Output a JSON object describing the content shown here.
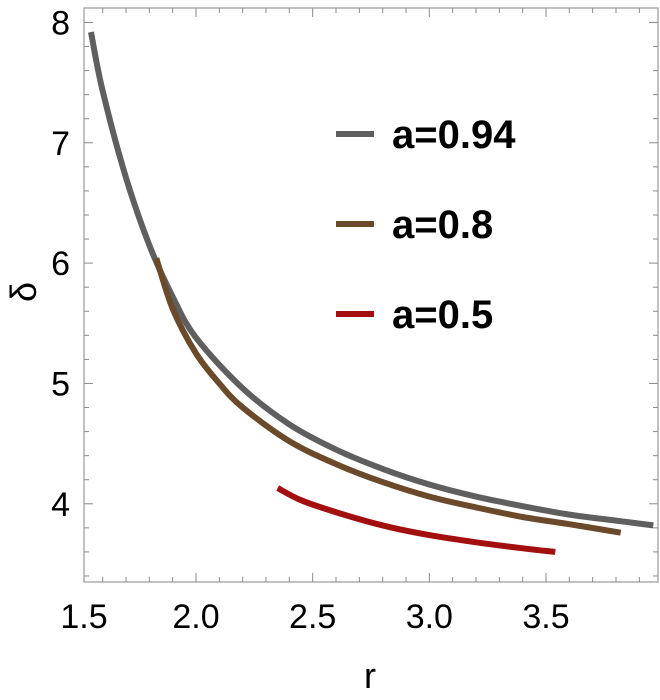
{
  "chart_data": {
    "type": "line",
    "title": "",
    "xlabel": "r",
    "ylabel": "δ",
    "xlim": [
      1.52,
      3.98
    ],
    "ylim": [
      3.35,
      8.12
    ],
    "x_ticks": [
      1.5,
      2.0,
      2.5,
      3.0,
      3.5
    ],
    "x_tick_labels": [
      "1.5",
      "2.0",
      "2.5",
      "3.0",
      "3.5"
    ],
    "y_ticks": [
      4,
      5,
      6,
      7,
      8
    ],
    "y_tick_labels": [
      "4",
      "5",
      "6",
      "7",
      "8"
    ],
    "grid": false,
    "legend_position": "top-right",
    "series": [
      {
        "name": "a=0.94",
        "color": "#5f5f5f",
        "x": [
          1.55,
          1.6,
          1.7,
          1.8,
          1.9,
          2.0,
          2.2,
          2.4,
          2.6,
          2.8,
          3.0,
          3.2,
          3.4,
          3.6,
          3.8,
          3.96
        ],
        "y": [
          7.92,
          7.43,
          6.71,
          6.15,
          5.72,
          5.38,
          4.96,
          4.66,
          4.45,
          4.29,
          4.16,
          4.06,
          3.98,
          3.91,
          3.86,
          3.82
        ]
      },
      {
        "name": "a=0.8",
        "color": "#6b4a2b",
        "x": [
          1.83,
          1.9,
          2.0,
          2.1,
          2.2,
          2.4,
          2.6,
          2.8,
          3.0,
          3.2,
          3.4,
          3.6,
          3.82
        ],
        "y": [
          6.04,
          5.62,
          5.25,
          5.0,
          4.8,
          4.52,
          4.33,
          4.18,
          4.06,
          3.97,
          3.89,
          3.83,
          3.76
        ]
      },
      {
        "name": "a=0.5",
        "color": "#a30e0e",
        "x": [
          2.35,
          2.45,
          2.6,
          2.8,
          3.0,
          3.2,
          3.4,
          3.54
        ],
        "y": [
          4.13,
          4.03,
          3.93,
          3.82,
          3.74,
          3.68,
          3.63,
          3.6
        ]
      }
    ]
  }
}
